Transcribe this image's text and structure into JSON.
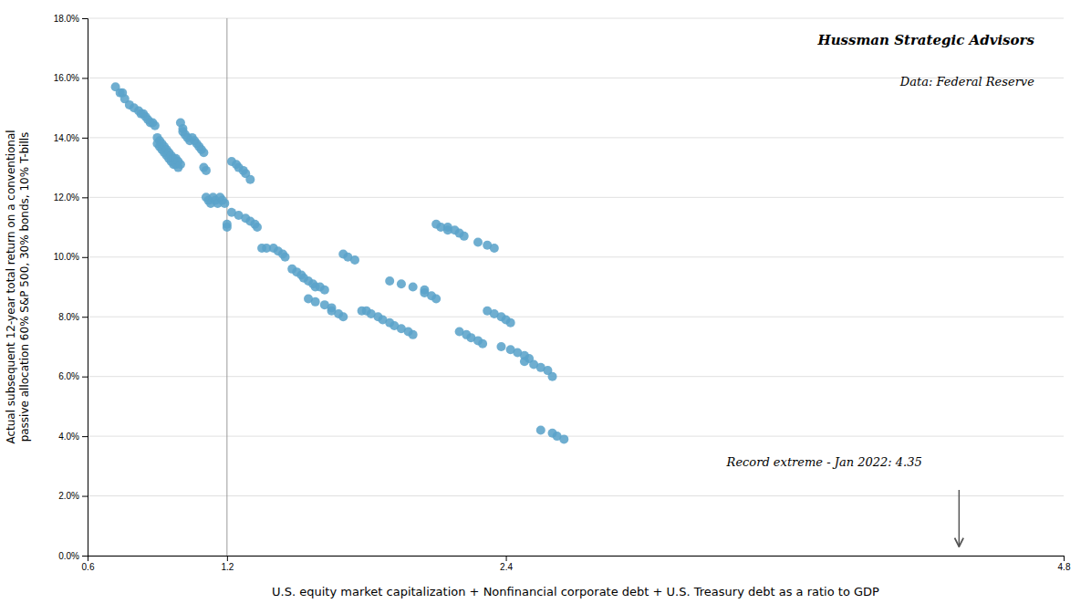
{
  "chart_data": {
    "type": "scatter",
    "title": "Hussman Strategic Advisors",
    "subtitle": "Data: Federal Reserve",
    "x_label": "U.S. equity market capitalization + Nonfinancial corporate debt + U.S. Treasury debt as a ratio to GDP",
    "y_label": "Actual subsequent 12-year total return on a conventional\npassive allocation 60% S&P 500, 30% bonds, 10% T-bills",
    "x": [
      0.72,
      0.74,
      0.75,
      0.76,
      0.78,
      0.8,
      0.82,
      0.83,
      0.84,
      0.85,
      0.86,
      0.87,
      0.88,
      0.89,
      0.9,
      0.9,
      0.91,
      0.91,
      0.92,
      0.92,
      0.93,
      0.93,
      0.94,
      0.94,
      0.95,
      0.95,
      0.96,
      0.96,
      0.97,
      0.97,
      0.98,
      0.98,
      0.99,
      0.99,
      1.0,
      1.0,
      1.01,
      1.01,
      1.02,
      1.03,
      1.04,
      1.05,
      1.06,
      1.07,
      1.08,
      1.09,
      1.1,
      1.1,
      1.11,
      1.11,
      1.12,
      1.13,
      1.14,
      1.15,
      1.16,
      1.17,
      1.18,
      1.19,
      1.2,
      1.2,
      1.22,
      1.24,
      1.25,
      1.27,
      1.28,
      1.3,
      1.22,
      1.25,
      1.28,
      1.3,
      1.32,
      1.33,
      1.35,
      1.37,
      1.4,
      1.42,
      1.44,
      1.45,
      1.48,
      1.5,
      1.52,
      1.53,
      1.55,
      1.57,
      1.58,
      1.6,
      1.62,
      1.55,
      1.58,
      1.62,
      1.65,
      1.65,
      1.68,
      1.7,
      1.7,
      1.72,
      1.75,
      1.78,
      1.8,
      1.82,
      1.85,
      1.87,
      1.9,
      1.92,
      1.95,
      1.98,
      2.0,
      1.9,
      1.95,
      2.0,
      2.05,
      2.05,
      2.08,
      2.1,
      2.1,
      2.12,
      2.15,
      2.15,
      2.18,
      2.2,
      2.22,
      2.2,
      2.23,
      2.25,
      2.28,
      2.3,
      2.28,
      2.32,
      2.35,
      2.32,
      2.35,
      2.38,
      2.4,
      2.42,
      2.38,
      2.42,
      2.45,
      2.48,
      2.5,
      2.48,
      2.52,
      2.55,
      2.58,
      2.6,
      2.55,
      2.6,
      2.62,
      2.65
    ],
    "values": [
      0.157,
      0.155,
      0.155,
      0.153,
      0.151,
      0.15,
      0.149,
      0.148,
      0.148,
      0.147,
      0.146,
      0.145,
      0.145,
      0.144,
      0.14,
      0.138,
      0.139,
      0.137,
      0.138,
      0.136,
      0.137,
      0.135,
      0.136,
      0.134,
      0.135,
      0.133,
      0.134,
      0.132,
      0.133,
      0.131,
      0.133,
      0.131,
      0.132,
      0.13,
      0.131,
      0.145,
      0.143,
      0.142,
      0.141,
      0.14,
      0.139,
      0.14,
      0.139,
      0.138,
      0.137,
      0.136,
      0.135,
      0.13,
      0.129,
      0.12,
      0.119,
      0.118,
      0.12,
      0.119,
      0.118,
      0.12,
      0.119,
      0.118,
      0.111,
      0.11,
      0.132,
      0.131,
      0.13,
      0.129,
      0.128,
      0.126,
      0.115,
      0.114,
      0.113,
      0.112,
      0.111,
      0.11,
      0.103,
      0.103,
      0.103,
      0.102,
      0.101,
      0.1,
      0.096,
      0.095,
      0.094,
      0.093,
      0.092,
      0.091,
      0.09,
      0.09,
      0.089,
      0.086,
      0.085,
      0.084,
      0.083,
      0.082,
      0.081,
      0.08,
      0.101,
      0.1,
      0.099,
      0.082,
      0.082,
      0.081,
      0.08,
      0.079,
      0.078,
      0.077,
      0.076,
      0.075,
      0.074,
      0.092,
      0.091,
      0.09,
      0.089,
      0.088,
      0.087,
      0.086,
      0.111,
      0.11,
      0.109,
      0.11,
      0.109,
      0.108,
      0.107,
      0.075,
      0.074,
      0.073,
      0.072,
      0.071,
      0.105,
      0.104,
      0.103,
      0.082,
      0.081,
      0.08,
      0.079,
      0.078,
      0.07,
      0.069,
      0.068,
      0.067,
      0.066,
      0.065,
      0.064,
      0.063,
      0.062,
      0.06,
      0.042,
      0.041,
      0.04,
      0.039
    ],
    "color": "#5BA3C9",
    "marker": "circle",
    "xlim": [
      0.6,
      4.8
    ],
    "xticks": [
      0.6,
      1.2,
      2.4,
      4.8
    ],
    "ylim": [
      0.0,
      0.18
    ],
    "yticks": [
      {
        "value": 0.0,
        "label": "0.0%"
      },
      {
        "value": 0.02,
        "label": "2.0%"
      },
      {
        "value": 0.04,
        "label": "4.0%"
      },
      {
        "value": 0.06,
        "label": "6.0%"
      },
      {
        "value": 0.08,
        "label": "8.0%"
      },
      {
        "value": 0.1,
        "label": "10.0%"
      },
      {
        "value": 0.12,
        "label": "12.0%"
      },
      {
        "value": 0.14,
        "label": "14.0%"
      },
      {
        "value": 0.16,
        "label": "16.0%"
      },
      {
        "value": 0.18,
        "label": "18.0%"
      }
    ],
    "grid": true,
    "reference_line_x": 1.2,
    "arrow": {
      "x": 4.35,
      "y_start": 0.022,
      "y_end": 0.003
    },
    "annotations": [
      {
        "text": "Record extreme - Jan 2022: 4.35",
        "x": 3.35,
        "y": 0.03
      }
    ]
  }
}
